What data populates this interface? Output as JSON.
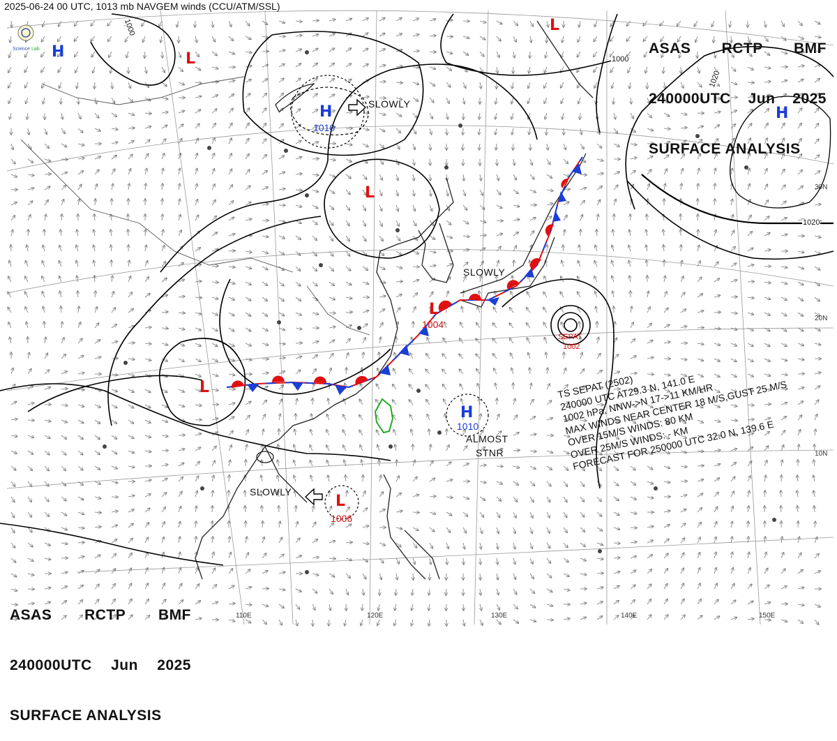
{
  "header": "2025-06-24 00 UTC, 1013 mb NAVGEM winds (CCU/ATM/SSL)",
  "logo": {
    "text": "Science Lab"
  },
  "title_block": {
    "line1": [
      "ASAS",
      "RCTP",
      "BMF"
    ],
    "line2": [
      "240000UTC",
      "Jun",
      "2025"
    ],
    "line3": "SURFACE ANALYSIS"
  },
  "pressure_centers": [
    {
      "type": "H",
      "value": ""
    },
    {
      "type": "L",
      "value": ""
    },
    {
      "type": "H",
      "value": "1010"
    },
    {
      "type": "L",
      "value": ""
    },
    {
      "type": "L",
      "value": "1004"
    },
    {
      "type": "L",
      "value": ""
    },
    {
      "type": "H",
      "value": "1010"
    },
    {
      "type": "L",
      "value": "1006"
    },
    {
      "type": "L",
      "value": ""
    },
    {
      "type": "H",
      "value": ""
    }
  ],
  "motion_labels": [
    "SLOWLY",
    "SLOWLY",
    "SLOWLY",
    "ALMOST",
    "STNR"
  ],
  "typhoon": {
    "label": "SEPAT",
    "pressure": "1002",
    "info_lines": [
      "TS  SEPAT  (2502)",
      "240000 UTC  AT29.3 N, 141.0 E",
      "1002 hPa, NNW->N  17->11 KM/HR",
      "MAX WINDS NEAR CENTER 18 M/S,GUST 25 M/S",
      "OVER 15M/S WINDS:  80 KM",
      "OVER 25M/S WINDS:  - KM",
      "FORECAST FOR 250000 UTC 32.0 N, 139.6 E"
    ]
  },
  "isobar_labels": [
    "1000",
    "1000",
    "1020",
    "1020"
  ],
  "longitude_labels": [
    "110E",
    "120E",
    "130E",
    "140E",
    "150E"
  ],
  "latitude_labels": [
    "30N",
    "20N",
    "10N"
  ],
  "colors": {
    "low": "#e01010",
    "high": "#1a3ed6",
    "warm_front": "#e01010",
    "cold_front": "#1a3ed6",
    "coastline": "#222222",
    "taiwan": "#22aa22",
    "wind_arrow": "#777777",
    "isobar": "#000000"
  }
}
